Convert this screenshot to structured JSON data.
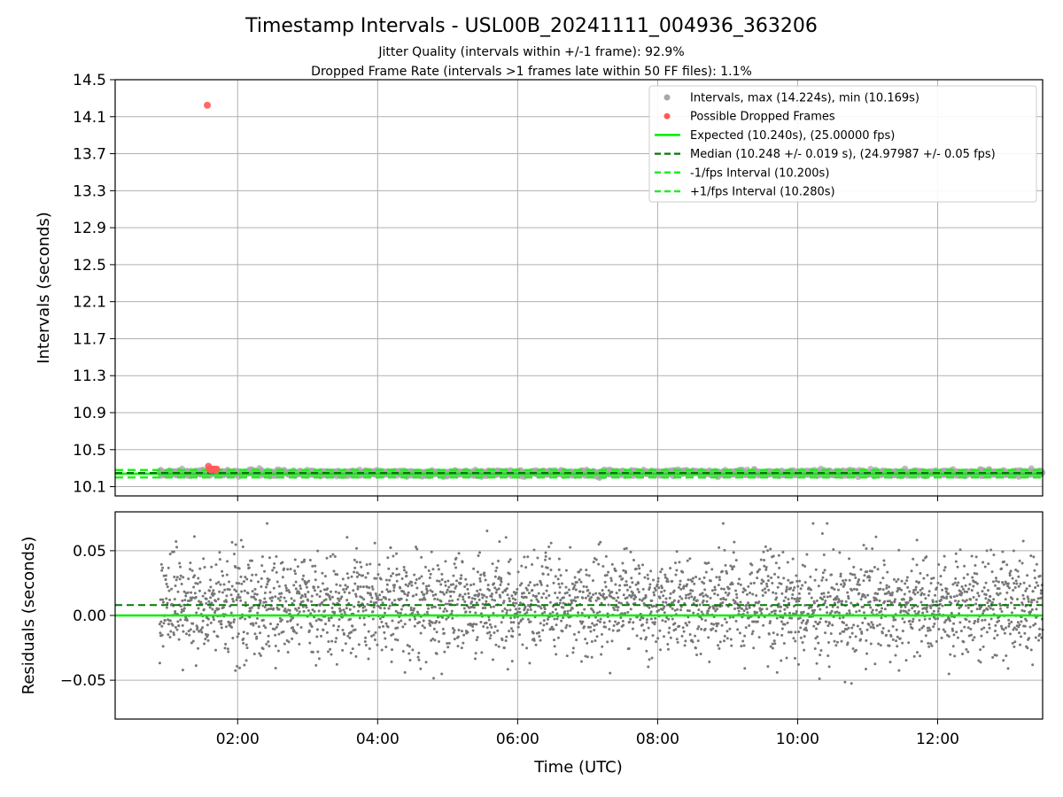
{
  "figure": {
    "title": "Timestamp Intervals - USL00B_20241111_004936_363206",
    "subtitle_1": "Jitter Quality (intervals within +/-1 frame): 92.9%",
    "subtitle_2": "Dropped Frame Rate (intervals >1 frames late within 50 FF files): 1.1%"
  },
  "colors": {
    "intervals": "#a8a8a8",
    "dropped": "#ff5b5b",
    "expected": "#00ee00",
    "median": "#007a00",
    "fps_band": "#22ee22",
    "residuals": "#777777",
    "grid": "#b0b0b0"
  },
  "chart_data": [
    {
      "type": "scatter",
      "panel": "intervals",
      "ylabel": "Intervals (seconds)",
      "xlabel": "",
      "xlim": [
        "00:15",
        "13:30"
      ],
      "ylim": [
        10.0,
        14.5
      ],
      "yticks": [
        "10.1",
        "10.5",
        "10.9",
        "11.3",
        "11.7",
        "12.1",
        "12.5",
        "12.9",
        "13.3",
        "13.7",
        "14.1",
        "14.5"
      ],
      "xticks": [
        "02:00",
        "04:00",
        "06:00",
        "08:00",
        "10:00",
        "12:00"
      ],
      "grid": true,
      "legend_position": "top-right",
      "legend": [
        "Intervals, max (14.224s), min (10.169s)",
        "Possible Dropped Frames",
        "Expected (10.240s), (25.00000 fps)",
        "Median (10.248 +/- 0.019 s), (24.97987 +/- 0.05 fps)",
        "-1/fps Interval (10.200s)",
        "+1/fps Interval (10.280s)"
      ],
      "intervals_range": {
        "start": "00:53",
        "end": "13:30",
        "min": 10.169,
        "max": 10.305,
        "median": 10.248,
        "stdev": 0.019
      },
      "dropped_points": [
        {
          "x": "01:34",
          "y": 14.224
        },
        {
          "x": "01:35",
          "y": 10.32
        },
        {
          "x": "01:36",
          "y": 10.29
        },
        {
          "x": "01:37",
          "y": 10.28
        },
        {
          "x": "01:38",
          "y": 10.29
        },
        {
          "x": "01:39",
          "y": 10.28
        },
        {
          "x": "01:40",
          "y": 10.29
        },
        {
          "x": "01:41",
          "y": 10.28
        },
        {
          "x": "01:42",
          "y": 10.29
        }
      ],
      "expected": 10.24,
      "median": 10.248,
      "minus_fps": 10.2,
      "plus_fps": 10.28
    },
    {
      "type": "scatter",
      "panel": "residuals",
      "ylabel": "Residuals (seconds)",
      "xlabel": "Time (UTC)",
      "xlim": [
        "00:15",
        "13:30"
      ],
      "ylim": [
        -0.08,
        0.08
      ],
      "yticks": [
        "−0.05",
        "0.00",
        "0.05"
      ],
      "xticks": [
        "02:00",
        "04:00",
        "06:00",
        "08:00",
        "10:00",
        "12:00"
      ],
      "grid": true,
      "residuals_range": {
        "start": "00:53",
        "end": "13:30",
        "min": -0.071,
        "max": 0.071,
        "center": 0.008,
        "stdev": 0.019
      },
      "expected_residual": 0.0,
      "median_residual": 0.008
    }
  ]
}
